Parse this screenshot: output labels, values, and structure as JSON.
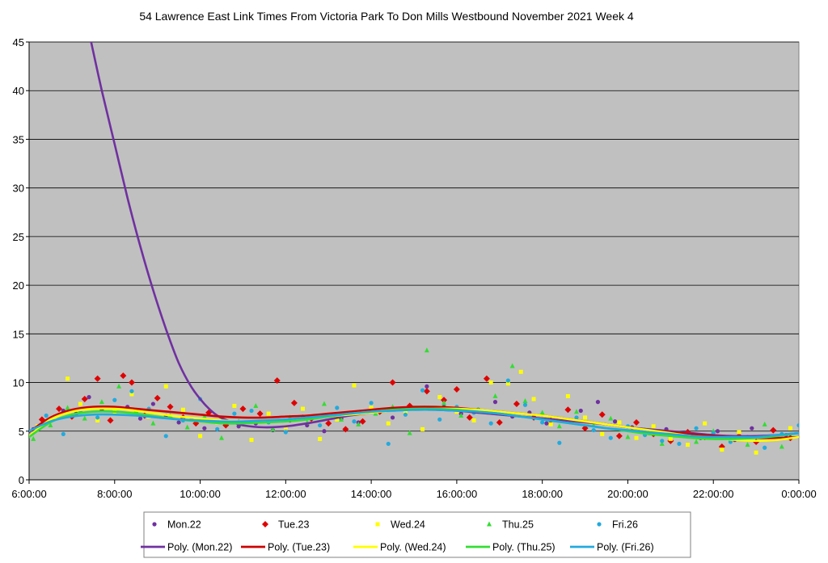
{
  "chart_data": {
    "type": "scatter",
    "title": "54 Lawrence East Link Times From Victoria Park To Don Mills Westbound November 2021  Week 4",
    "xlabel": "",
    "ylabel": "",
    "xlim_hours": [
      6,
      24
    ],
    "ylim": [
      0,
      45
    ],
    "y_ticks": [
      "0",
      "5",
      "10",
      "15",
      "20",
      "25",
      "30",
      "35",
      "40",
      "45"
    ],
    "x_ticks": [
      "6:00:00",
      "8:00:00",
      "10:00:00",
      "12:00:00",
      "14:00:00",
      "16:00:00",
      "18:00:00",
      "20:00:00",
      "22:00:00",
      "0:00:00"
    ],
    "grid": "horizontal",
    "legend_position": "bottom",
    "legend": [
      {
        "label": "Mon.22",
        "kind": "marker",
        "marker": "circle",
        "color": "#7030A0"
      },
      {
        "label": "Tue.23",
        "kind": "marker",
        "marker": "diamond",
        "color": "#E00000"
      },
      {
        "label": "Wed.24",
        "kind": "marker",
        "marker": "square",
        "color": "#FFFF00"
      },
      {
        "label": "Thu.25",
        "kind": "marker",
        "marker": "triangle",
        "color": "#33DD33"
      },
      {
        "label": "Fri.26",
        "kind": "marker",
        "marker": "circle",
        "color": "#22AADD"
      },
      {
        "label": "Poly. (Mon.22)",
        "kind": "line",
        "color": "#7030A0"
      },
      {
        "label": "Poly. (Tue.23)",
        "kind": "line",
        "color": "#CC0000"
      },
      {
        "label": "Poly. (Wed.24)",
        "kind": "line",
        "color": "#FFFF00"
      },
      {
        "label": "Poly. (Thu.25)",
        "kind": "line",
        "color": "#33DD33"
      },
      {
        "label": "Poly. (Fri.26)",
        "kind": "line",
        "color": "#22AADD"
      }
    ],
    "trendlines": [
      {
        "name": "Poly. (Mon.22)",
        "color": "#7030A0",
        "x": [
          7.45,
          7.7,
          8.0,
          8.3,
          8.6,
          8.9,
          9.2,
          9.5,
          9.8,
          10.1,
          10.4,
          10.7,
          11.0,
          11.5,
          12.0,
          12.5,
          13.0,
          13.5,
          14.0,
          14.5,
          15.0,
          15.5,
          16.0,
          16.5,
          17.0,
          17.5,
          18.0,
          18.5,
          19.0,
          19.5,
          20.0,
          20.5,
          21.0,
          21.5,
          22.0,
          22.5,
          23.0,
          23.5,
          24.0
        ],
        "y": [
          45,
          40,
          34.5,
          29,
          24,
          19.5,
          15.5,
          12,
          9.5,
          7.8,
          6.6,
          6.0,
          5.6,
          5.4,
          5.5,
          5.8,
          6.2,
          6.6,
          6.9,
          7.1,
          7.2,
          7.2,
          7.1,
          6.9,
          6.7,
          6.5,
          6.3,
          6.1,
          5.9,
          5.7,
          5.4,
          5.2,
          5.0,
          4.8,
          4.6,
          4.5,
          4.5,
          4.6,
          4.8
        ]
      },
      {
        "name": "Poly. (Tue.23)",
        "color": "#CC0000",
        "x": [
          6.0,
          6.5,
          7.0,
          7.5,
          8.0,
          8.5,
          9.0,
          9.5,
          10.0,
          10.5,
          11.0,
          11.5,
          12.0,
          12.5,
          13.0,
          13.5,
          14.0,
          14.5,
          15.0,
          15.5,
          16.0,
          16.5,
          17.0,
          17.5,
          18.0,
          18.5,
          19.0,
          19.5,
          20.0,
          20.5,
          21.0,
          21.5,
          22.0,
          22.5,
          23.0,
          23.5,
          24.0
        ],
        "y": [
          4.9,
          6.4,
          7.2,
          7.5,
          7.5,
          7.3,
          7.1,
          6.9,
          6.7,
          6.5,
          6.4,
          6.4,
          6.5,
          6.6,
          6.8,
          7.0,
          7.2,
          7.4,
          7.5,
          7.5,
          7.4,
          7.2,
          7.0,
          6.8,
          6.6,
          6.3,
          6.0,
          5.7,
          5.4,
          5.1,
          4.9,
          4.7,
          4.5,
          4.4,
          4.3,
          4.3,
          4.4
        ]
      },
      {
        "name": "Poly. (Wed.24)",
        "color": "#FFFF00",
        "x": [
          6.0,
          6.5,
          7.0,
          7.5,
          8.0,
          8.5,
          9.0,
          9.5,
          10.0,
          10.5,
          11.0,
          11.5,
          12.0,
          12.5,
          13.0,
          13.5,
          14.0,
          14.5,
          15.0,
          15.5,
          16.0,
          16.5,
          17.0,
          17.5,
          18.0,
          18.5,
          19.0,
          19.5,
          20.0,
          20.5,
          21.0,
          21.5,
          22.0,
          22.5,
          23.0,
          23.5,
          24.0
        ],
        "y": [
          4.5,
          6.2,
          7.0,
          7.3,
          7.3,
          7.1,
          6.8,
          6.5,
          6.3,
          6.1,
          6.0,
          6.0,
          6.1,
          6.3,
          6.5,
          6.7,
          6.9,
          7.1,
          7.2,
          7.3,
          7.3,
          7.2,
          7.0,
          6.8,
          6.6,
          6.3,
          6.0,
          5.7,
          5.4,
          5.1,
          4.8,
          4.5,
          4.3,
          4.1,
          4.0,
          4.1,
          4.4
        ]
      },
      {
        "name": "Poly. (Thu.25)",
        "color": "#33DD33",
        "x": [
          6.0,
          6.5,
          7.0,
          7.5,
          8.0,
          8.5,
          9.0,
          9.5,
          10.0,
          10.5,
          11.0,
          11.5,
          12.0,
          12.5,
          13.0,
          13.5,
          14.0,
          14.5,
          15.0,
          15.5,
          16.0,
          16.5,
          17.0,
          17.5,
          18.0,
          18.5,
          19.0,
          19.5,
          20.0,
          20.5,
          21.0,
          21.5,
          22.0,
          22.5,
          23.0,
          23.5,
          24.0
        ],
        "y": [
          4.4,
          5.9,
          6.7,
          7.0,
          7.0,
          6.8,
          6.5,
          6.2,
          6.0,
          5.8,
          5.8,
          5.9,
          6.0,
          6.2,
          6.5,
          6.8,
          7.0,
          7.2,
          7.3,
          7.3,
          7.2,
          7.0,
          6.8,
          6.5,
          6.2,
          5.9,
          5.6,
          5.3,
          5.0,
          4.7,
          4.5,
          4.3,
          4.2,
          4.2,
          4.3,
          4.5,
          4.8
        ]
      },
      {
        "name": "Poly. (Fri.26)",
        "color": "#22AADD",
        "x": [
          6.0,
          6.5,
          7.0,
          7.5,
          8.0,
          8.5,
          9.0,
          9.5,
          10.0,
          10.5,
          11.0,
          11.5,
          12.0,
          12.5,
          13.0,
          13.5,
          14.0,
          14.5,
          15.0,
          15.5,
          16.0,
          16.5,
          17.0,
          17.5,
          18.0,
          18.5,
          19.0,
          19.5,
          20.0,
          20.5,
          21.0,
          21.5,
          22.0,
          22.5,
          23.0,
          23.5,
          24.0
        ],
        "y": [
          5.0,
          6.0,
          6.5,
          6.7,
          6.7,
          6.6,
          6.4,
          6.2,
          6.1,
          6.0,
          6.0,
          6.1,
          6.2,
          6.4,
          6.6,
          6.8,
          7.0,
          7.1,
          7.2,
          7.2,
          7.1,
          7.0,
          6.8,
          6.5,
          6.2,
          5.9,
          5.6,
          5.3,
          5.1,
          4.9,
          4.7,
          4.5,
          4.4,
          4.4,
          4.4,
          4.6,
          4.8
        ]
      }
    ],
    "series": [
      {
        "name": "Mon.22",
        "marker": "circle",
        "color": "#7030A0",
        "x": [
          6.1,
          6.4,
          6.8,
          7.1,
          7.4,
          7.7,
          8.0,
          8.3,
          8.6,
          8.9,
          9.2,
          9.5,
          9.8,
          10.1,
          10.5,
          10.9,
          11.3,
          11.7,
          12.1,
          12.5,
          12.9,
          13.3,
          13.7,
          14.1,
          14.5,
          14.9,
          15.3,
          15.7,
          16.1,
          16.5,
          16.9,
          17.3,
          17.7,
          18.1,
          18.5,
          18.9,
          19.3,
          19.7,
          20.1,
          20.5,
          20.9,
          21.3,
          21.7,
          22.1,
          22.5,
          22.9,
          23.3,
          23.7
        ],
        "y": [
          5.2,
          6.0,
          7.1,
          6.8,
          8.5,
          7.2,
          6.9,
          7.5,
          6.3,
          7.8,
          6.6,
          5.9,
          6.2,
          5.3,
          6.0,
          5.5,
          5.8,
          5.1,
          6.1,
          5.6,
          5.0,
          6.3,
          5.9,
          7.0,
          6.4,
          7.3,
          9.6,
          7.5,
          6.8,
          7.2,
          8.0,
          6.5,
          6.9,
          5.8,
          6.2,
          7.1,
          8.0,
          6.0,
          5.4,
          4.8,
          5.2,
          4.5,
          4.3,
          5.0,
          4.1,
          5.3,
          4.4,
          4.6
        ]
      },
      {
        "name": "Tue.23",
        "marker": "diamond",
        "color": "#E00000",
        "x": [
          6.3,
          6.7,
          7.0,
          7.3,
          7.6,
          7.9,
          8.2,
          8.4,
          8.7,
          9.0,
          9.3,
          9.6,
          9.9,
          10.2,
          10.6,
          11.0,
          11.4,
          11.8,
          12.2,
          12.6,
          13.0,
          13.4,
          13.8,
          14.2,
          14.5,
          14.9,
          15.3,
          15.7,
          16.0,
          16.3,
          16.7,
          17.0,
          17.4,
          17.8,
          18.2,
          18.6,
          19.0,
          19.4,
          19.8,
          20.2,
          20.6,
          21.0,
          21.4,
          21.8,
          22.2,
          22.6,
          23.0,
          23.4,
          23.8
        ],
        "y": [
          6.2,
          7.3,
          6.5,
          8.3,
          10.4,
          6.1,
          10.7,
          10.0,
          6.6,
          8.4,
          7.5,
          6.4,
          5.8,
          6.9,
          5.6,
          7.3,
          6.8,
          10.2,
          7.9,
          6.3,
          5.8,
          5.2,
          6.0,
          7.0,
          10.0,
          7.6,
          9.1,
          8.2,
          9.3,
          6.4,
          10.4,
          5.9,
          7.8,
          6.4,
          6.1,
          7.2,
          5.3,
          6.7,
          4.5,
          5.9,
          4.7,
          4.0,
          4.9,
          4.4,
          3.4,
          4.5,
          3.9,
          5.1,
          4.3
        ]
      },
      {
        "name": "Wed.24",
        "marker": "square",
        "color": "#FFFF00",
        "x": [
          6.2,
          6.6,
          6.9,
          7.2,
          7.6,
          8.0,
          8.4,
          8.8,
          9.2,
          9.6,
          10.0,
          10.4,
          10.8,
          11.2,
          11.6,
          12.0,
          12.4,
          12.8,
          13.2,
          13.6,
          14.0,
          14.4,
          14.8,
          15.2,
          15.6,
          16.0,
          16.4,
          16.8,
          17.2,
          17.5,
          17.8,
          18.2,
          18.6,
          19.0,
          19.4,
          19.8,
          20.2,
          20.6,
          21.0,
          21.4,
          21.8,
          22.2,
          22.6,
          23.0,
          23.4,
          23.8
        ],
        "y": [
          5.5,
          6.4,
          10.4,
          7.8,
          6.1,
          7.0,
          8.8,
          6.5,
          9.6,
          7.2,
          4.5,
          5.9,
          7.6,
          4.1,
          6.8,
          5.4,
          7.3,
          4.2,
          6.2,
          9.7,
          7.4,
          5.8,
          6.9,
          5.2,
          8.5,
          7.0,
          6.1,
          10.0,
          9.9,
          11.1,
          8.3,
          5.7,
          8.6,
          6.4,
          4.7,
          5.9,
          4.3,
          5.5,
          4.2,
          3.6,
          5.8,
          3.1,
          4.9,
          2.8,
          4.4,
          5.3
        ]
      },
      {
        "name": "Thu.25",
        "marker": "triangle",
        "color": "#33DD33",
        "x": [
          6.1,
          6.5,
          6.9,
          7.3,
          7.7,
          8.1,
          8.5,
          8.9,
          9.3,
          9.7,
          10.1,
          10.5,
          10.9,
          11.3,
          11.7,
          12.1,
          12.5,
          12.9,
          13.3,
          13.7,
          14.1,
          14.5,
          14.9,
          15.3,
          15.7,
          16.1,
          16.5,
          16.9,
          17.3,
          17.6,
          18.0,
          18.4,
          18.8,
          19.2,
          19.6,
          20.0,
          20.4,
          20.8,
          21.2,
          21.6,
          22.0,
          22.4,
          22.8,
          23.2,
          23.6
        ],
        "y": [
          4.2,
          5.6,
          7.4,
          6.3,
          8.0,
          9.6,
          7.1,
          5.8,
          6.6,
          5.4,
          6.5,
          4.3,
          6.0,
          7.6,
          5.2,
          6.4,
          5.9,
          7.8,
          6.2,
          5.7,
          6.8,
          7.5,
          4.8,
          13.3,
          7.9,
          6.6,
          7.2,
          8.6,
          11.7,
          8.1,
          6.9,
          5.5,
          7.0,
          5.6,
          6.3,
          4.4,
          5.1,
          3.7,
          4.6,
          3.9,
          5.0,
          4.2,
          3.6,
          5.7,
          3.4
        ]
      },
      {
        "name": "Fri.26",
        "marker": "circle",
        "color": "#22AADD",
        "x": [
          6.0,
          6.4,
          6.8,
          7.2,
          7.6,
          8.0,
          8.4,
          8.8,
          9.2,
          9.6,
          10.0,
          10.4,
          10.8,
          11.2,
          11.6,
          12.0,
          12.4,
          12.8,
          13.2,
          13.6,
          14.0,
          14.4,
          14.8,
          15.2,
          15.6,
          16.0,
          16.4,
          16.8,
          17.2,
          17.6,
          18.0,
          18.4,
          18.8,
          19.2,
          19.6,
          20.0,
          20.4,
          20.8,
          21.2,
          21.6,
          22.0,
          22.4,
          22.8,
          23.2,
          23.6,
          24.0
        ],
        "y": [
          4.6,
          6.6,
          4.7,
          7.0,
          6.4,
          8.2,
          9.1,
          7.3,
          4.5,
          6.1,
          8.3,
          5.2,
          6.8,
          7.1,
          5.9,
          4.9,
          6.5,
          5.6,
          7.4,
          6.0,
          7.9,
          3.7,
          6.7,
          9.2,
          6.2,
          7.5,
          6.9,
          5.8,
          10.2,
          7.7,
          5.9,
          3.8,
          6.4,
          5.1,
          4.3,
          5.5,
          4.6,
          4.0,
          3.7,
          5.3,
          4.8,
          3.9,
          4.4,
          3.3,
          4.7,
          5.6
        ]
      }
    ]
  }
}
